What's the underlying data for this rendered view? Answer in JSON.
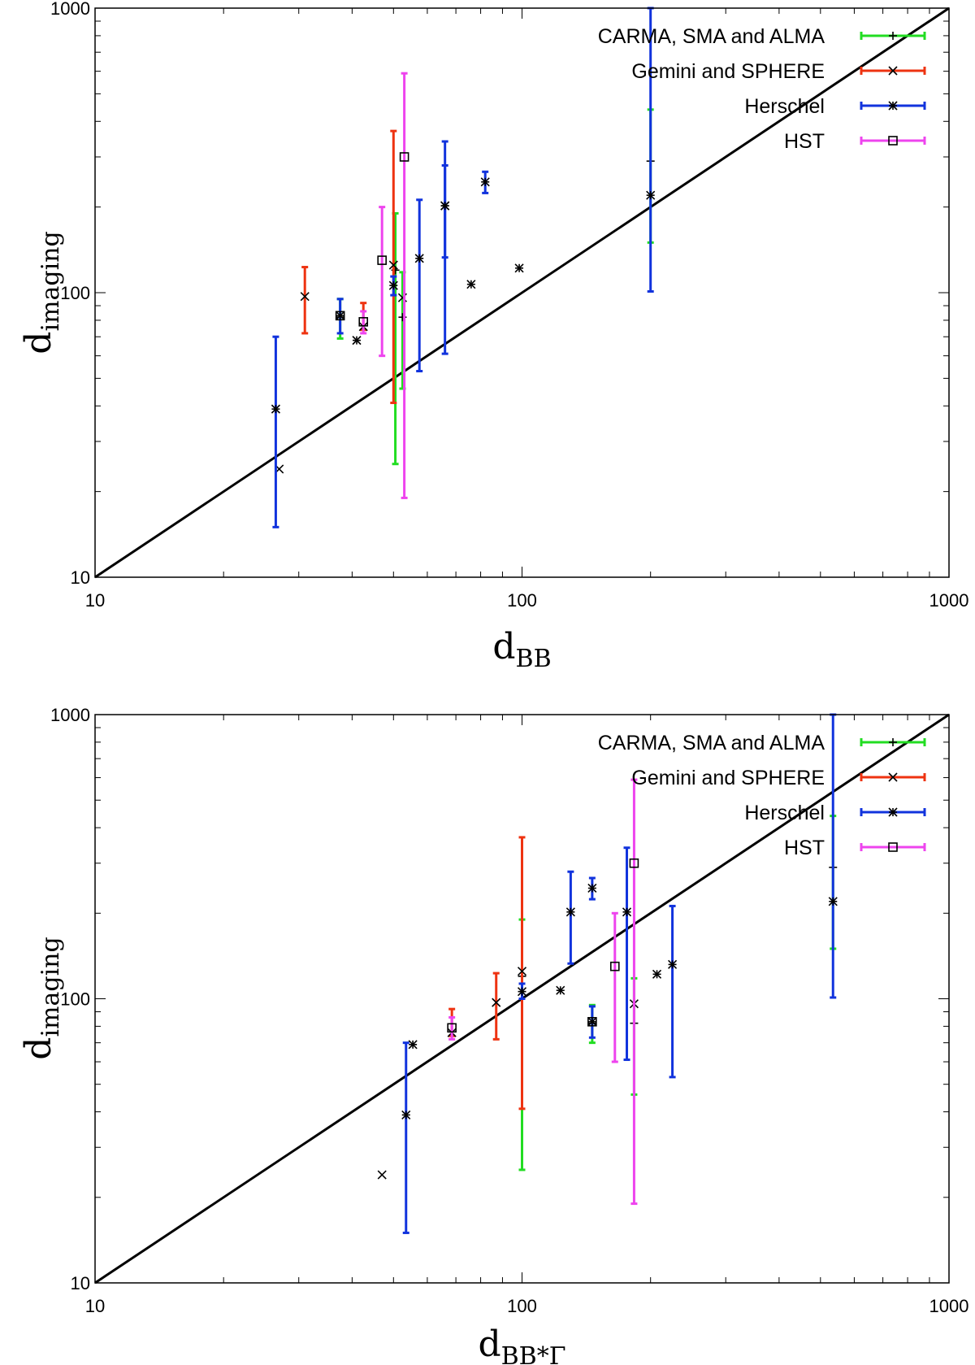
{
  "chart_data": [
    {
      "type": "scatter",
      "xscale": "log",
      "yscale": "log",
      "xlim": [
        10,
        1000
      ],
      "ylim": [
        10,
        1000
      ],
      "xticks": [
        "10",
        "100",
        "1000"
      ],
      "yticks": [
        "10",
        "100",
        "1000"
      ],
      "xlabel_main": "d",
      "xlabel_sub": "BB",
      "ylabel_main": "d",
      "ylabel_sub": "imaging",
      "reference_line": "y = x",
      "legend": [
        {
          "label": "CARMA, SMA and ALMA",
          "color": "#22dd22",
          "marker": "plus"
        },
        {
          "label": "Gemini and SPHERE",
          "color": "#ee3311",
          "marker": "x"
        },
        {
          "label": "Herschel",
          "color": "#1133dd",
          "marker": "star"
        },
        {
          "label": "HST",
          "color": "#ee44ee",
          "marker": "square"
        }
      ],
      "series": [
        {
          "name": "CARMA, SMA and ALMA",
          "points": [
            {
              "x": 37.5,
              "y": 82,
              "ylo": 69,
              "yhi": 95
            },
            {
              "x": 50.5,
              "y": 120,
              "ylo": 25,
              "yhi": 190
            },
            {
              "x": 52.5,
              "y": 82,
              "ylo": 46,
              "yhi": 118
            },
            {
              "x": 200,
              "y": 290,
              "ylo": 150,
              "yhi": 440
            }
          ]
        },
        {
          "name": "Gemini and SPHERE",
          "points": [
            {
              "x": 27,
              "y": 24,
              "ylo": 24,
              "yhi": 24
            },
            {
              "x": 31,
              "y": 97,
              "ylo": 72,
              "yhi": 123
            },
            {
              "x": 42.5,
              "y": 76,
              "ylo": 74,
              "yhi": 92
            },
            {
              "x": 50,
              "y": 125,
              "ylo": 41,
              "yhi": 370
            },
            {
              "x": 52.5,
              "y": 96,
              "ylo": 96,
              "yhi": 96
            }
          ]
        },
        {
          "name": "Herschel",
          "points": [
            {
              "x": 26.5,
              "y": 39,
              "ylo": 15,
              "yhi": 70
            },
            {
              "x": 37.5,
              "y": 83,
              "ylo": 72,
              "yhi": 95
            },
            {
              "x": 41,
              "y": 68,
              "ylo": 68,
              "yhi": 68
            },
            {
              "x": 50,
              "y": 106,
              "ylo": 98,
              "yhi": 114
            },
            {
              "x": 57.5,
              "y": 132,
              "ylo": 53,
              "yhi": 212
            },
            {
              "x": 66,
              "y": 202,
              "ylo": 61,
              "yhi": 340
            },
            {
              "x": 66,
              "y": 202,
              "ylo": 133,
              "yhi": 280
            },
            {
              "x": 76,
              "y": 107,
              "ylo": 107,
              "yhi": 107
            },
            {
              "x": 82,
              "y": 245,
              "ylo": 224,
              "yhi": 266
            },
            {
              "x": 98.5,
              "y": 122,
              "ylo": 122,
              "yhi": 122
            },
            {
              "x": 200,
              "y": 220,
              "ylo": 101,
              "yhi": 1000
            }
          ]
        },
        {
          "name": "HST",
          "points": [
            {
              "x": 37.5,
              "y": 83,
              "ylo": 83,
              "yhi": 83
            },
            {
              "x": 42.5,
              "y": 79,
              "ylo": 72,
              "yhi": 86
            },
            {
              "x": 47,
              "y": 130,
              "ylo": 60,
              "yhi": 200
            },
            {
              "x": 53,
              "y": 300,
              "ylo": 19,
              "yhi": 590
            }
          ]
        }
      ]
    },
    {
      "type": "scatter",
      "xscale": "log",
      "yscale": "log",
      "xlim": [
        10,
        1000
      ],
      "ylim": [
        10,
        1000
      ],
      "xticks": [
        "10",
        "100",
        "1000"
      ],
      "yticks": [
        "10",
        "100",
        "1000"
      ],
      "xlabel_main": "d",
      "xlabel_sub": "BB*Γ",
      "ylabel_main": "d",
      "ylabel_sub": "imaging",
      "reference_line": "y = x",
      "legend": [
        {
          "label": "CARMA, SMA and ALMA",
          "color": "#22dd22",
          "marker": "plus"
        },
        {
          "label": "Gemini and SPHERE",
          "color": "#ee3311",
          "marker": "x"
        },
        {
          "label": "Herschel",
          "color": "#1133dd",
          "marker": "star"
        },
        {
          "label": "HST",
          "color": "#ee44ee",
          "marker": "square"
        }
      ],
      "series": [
        {
          "name": "CARMA, SMA and ALMA",
          "points": [
            {
              "x": 146,
              "y": 82,
              "ylo": 70,
              "yhi": 95
            },
            {
              "x": 100,
              "y": 120,
              "ylo": 25,
              "yhi": 190
            },
            {
              "x": 183,
              "y": 82,
              "ylo": 46,
              "yhi": 118
            },
            {
              "x": 535,
              "y": 290,
              "ylo": 150,
              "yhi": 440
            }
          ]
        },
        {
          "name": "Gemini and SPHERE",
          "points": [
            {
              "x": 47,
              "y": 24,
              "ylo": 24,
              "yhi": 24
            },
            {
              "x": 87,
              "y": 97,
              "ylo": 72,
              "yhi": 123
            },
            {
              "x": 68.5,
              "y": 76,
              "ylo": 74,
              "yhi": 92
            },
            {
              "x": 100,
              "y": 125,
              "ylo": 41,
              "yhi": 370
            },
            {
              "x": 183,
              "y": 96,
              "ylo": 96,
              "yhi": 96
            }
          ]
        },
        {
          "name": "Herschel",
          "points": [
            {
              "x": 53.5,
              "y": 39,
              "ylo": 15,
              "yhi": 70
            },
            {
              "x": 146,
              "y": 83,
              "ylo": 73,
              "yhi": 94
            },
            {
              "x": 55.5,
              "y": 69,
              "ylo": 69,
              "yhi": 69
            },
            {
              "x": 100,
              "y": 106,
              "ylo": 100,
              "yhi": 113
            },
            {
              "x": 225,
              "y": 132,
              "ylo": 53,
              "yhi": 212
            },
            {
              "x": 176,
              "y": 202,
              "ylo": 61,
              "yhi": 340
            },
            {
              "x": 130,
              "y": 202,
              "ylo": 133,
              "yhi": 280
            },
            {
              "x": 123,
              "y": 107,
              "ylo": 107,
              "yhi": 107
            },
            {
              "x": 146,
              "y": 245,
              "ylo": 224,
              "yhi": 266
            },
            {
              "x": 207,
              "y": 122,
              "ylo": 122,
              "yhi": 122
            },
            {
              "x": 535,
              "y": 220,
              "ylo": 101,
              "yhi": 1000
            }
          ]
        },
        {
          "name": "HST",
          "points": [
            {
              "x": 146,
              "y": 83,
              "ylo": 83,
              "yhi": 83
            },
            {
              "x": 68.5,
              "y": 79,
              "ylo": 72,
              "yhi": 86
            },
            {
              "x": 165,
              "y": 130,
              "ylo": 60,
              "yhi": 200
            },
            {
              "x": 183,
              "y": 300,
              "ylo": 19,
              "yhi": 590
            }
          ]
        }
      ]
    }
  ]
}
